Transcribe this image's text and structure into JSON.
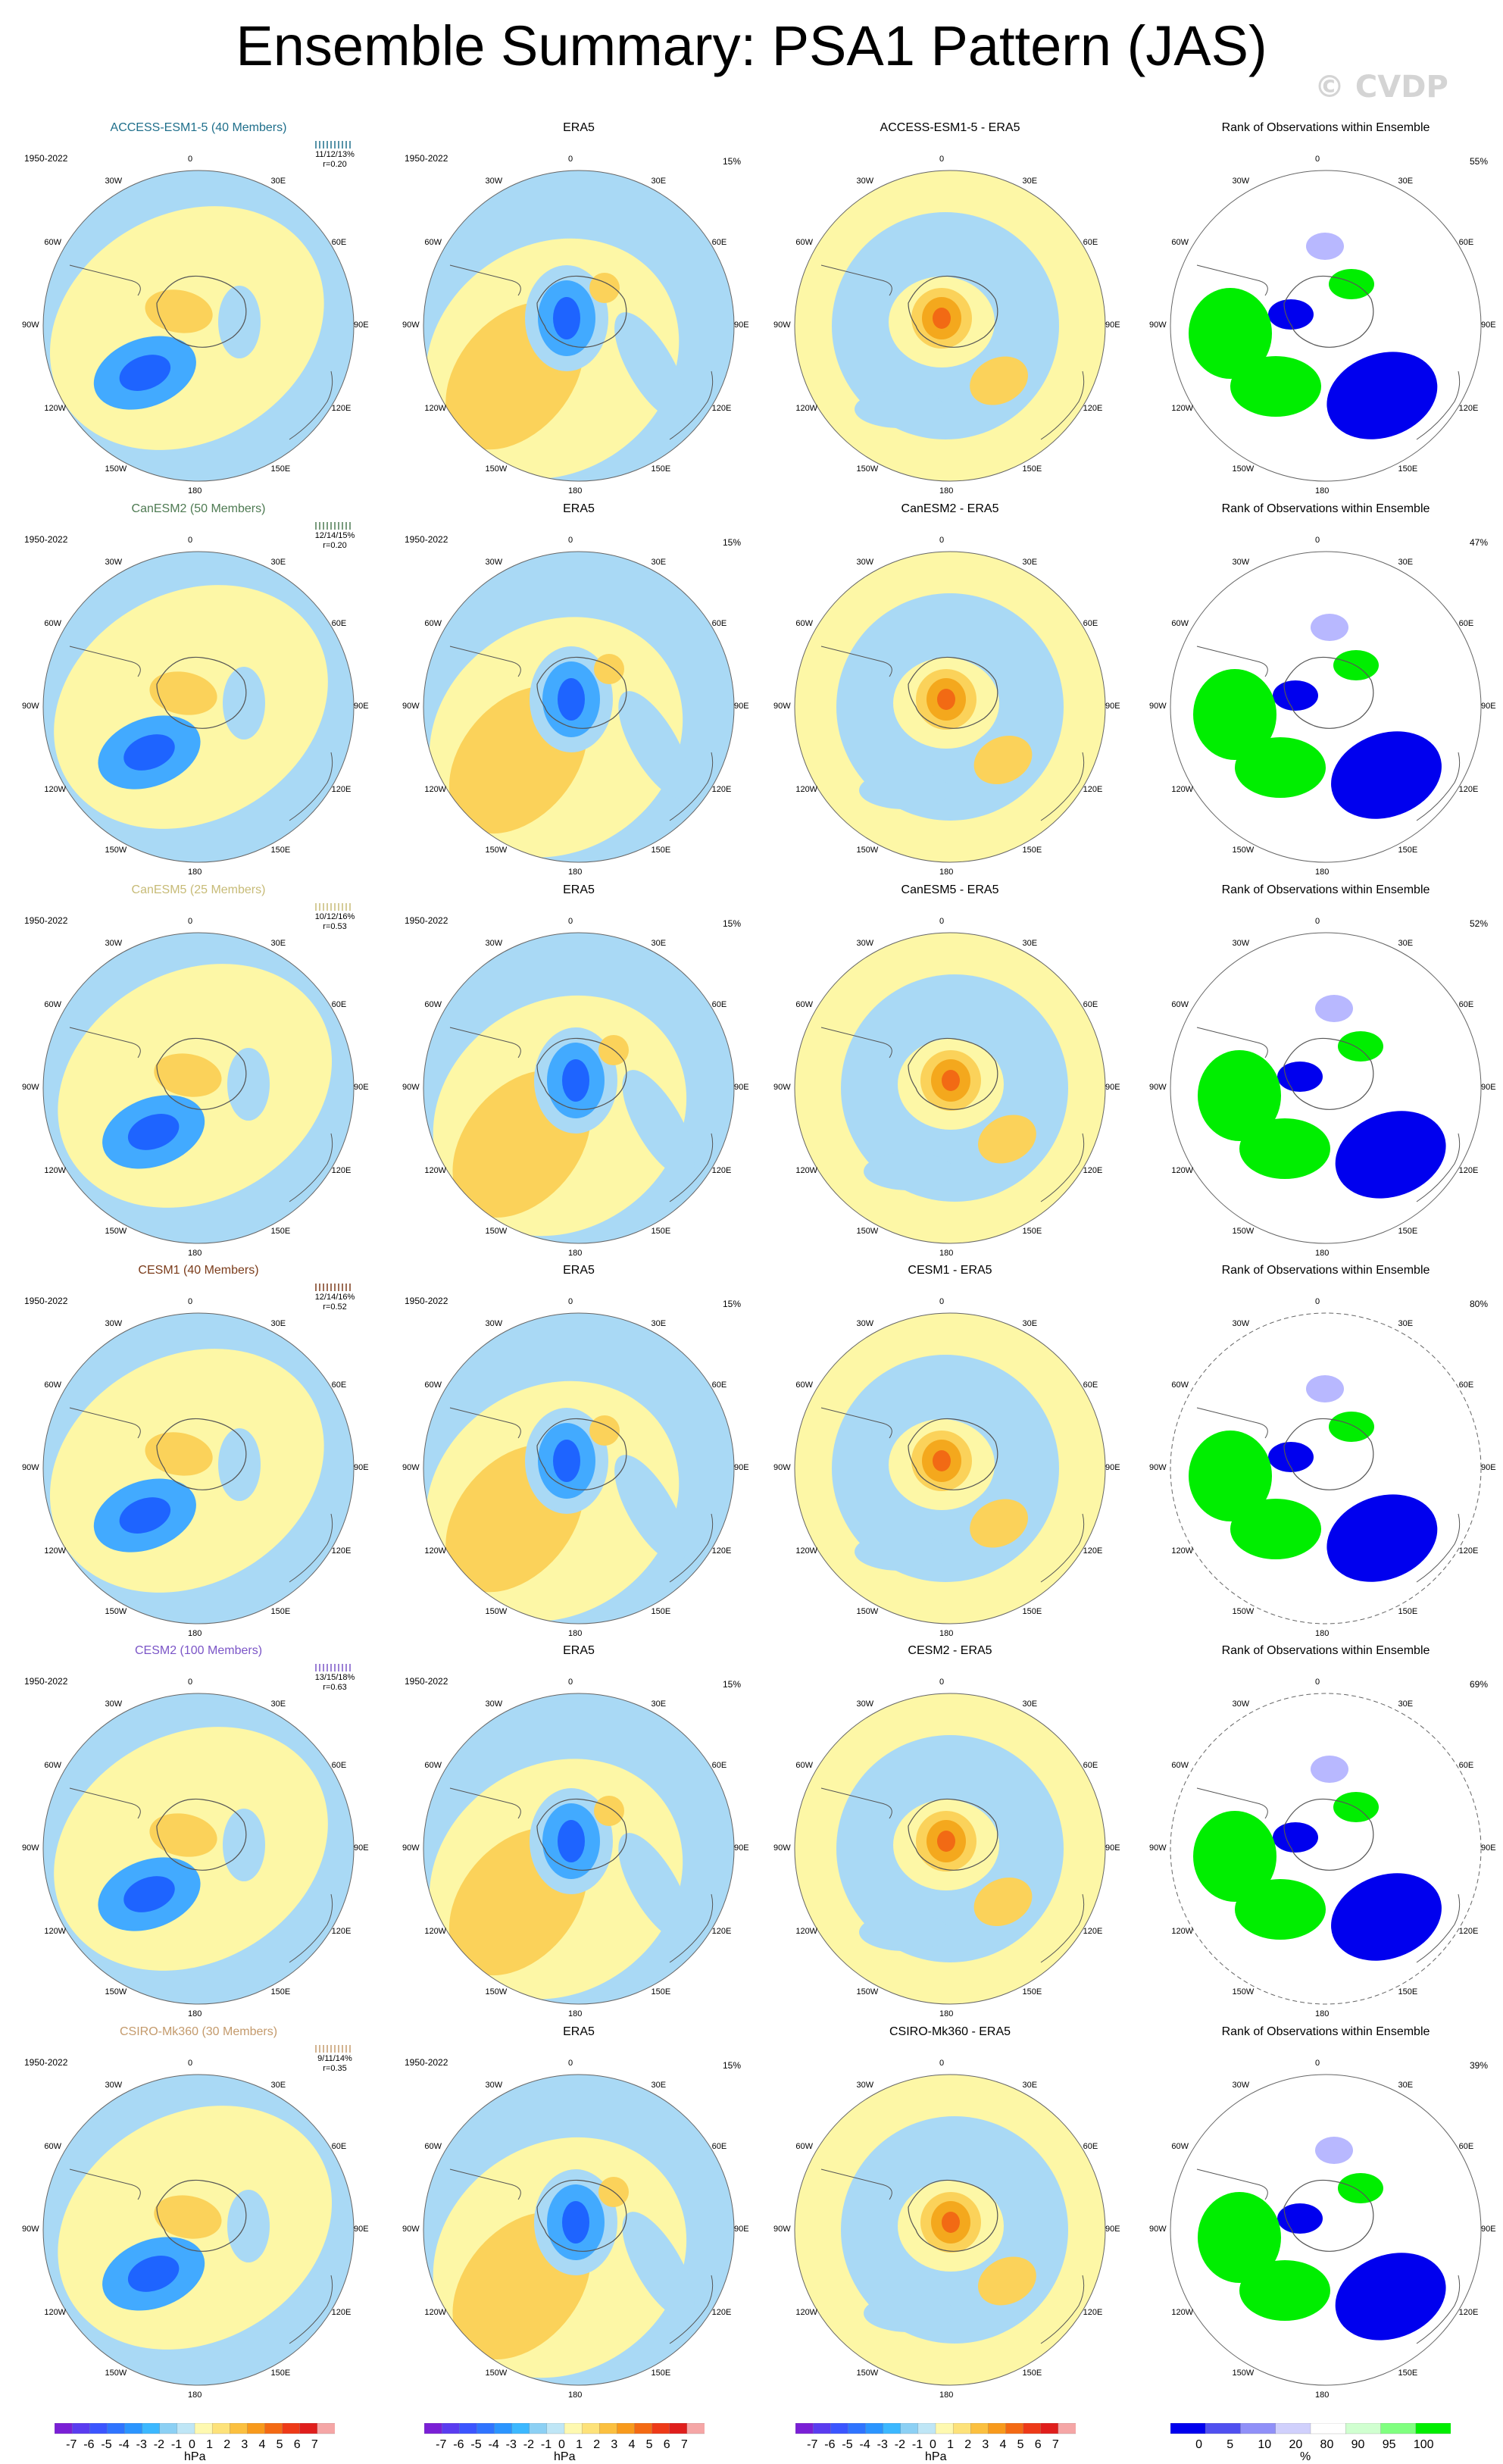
{
  "page": {
    "title": "Ensemble Summary: PSA1 Pattern (JAS)",
    "watermark": "© CVDP"
  },
  "colors": {
    "neg_strong": "#1e64ff",
    "neg_mid": "#42aaff",
    "neg_light": "#a9d9f5",
    "neutral": "#fdf7a6",
    "pos_light": "#fbd25a",
    "pos_mid": "#f4a81d",
    "pos_strong": "#f26a14",
    "pos_max": "#e8201d",
    "rank_blue": "#0000ee",
    "rank_green": "#00ee00",
    "rank_lightblue": "#b8b8ff",
    "rank_lightgreen": "#a8ffa8"
  },
  "longitude_labels": [
    "0",
    "30E",
    "60E",
    "90E",
    "120E",
    "150E",
    "180",
    "150W",
    "120W",
    "90W",
    "60W",
    "30W"
  ],
  "rows": [
    {
      "model": "ACCESS-ESM1-5 (40 Members)",
      "model_color": "#1f6f8b",
      "period": "1950-2022",
      "ranks": "11/12/13%",
      "corr": "r=0.20",
      "era_title": "ERA5",
      "era_period": "1950-2022",
      "era_pct": "15%",
      "diff_title": "ACCESS-ESM1-5 - ERA5",
      "rank_title": "Rank of Observations within Ensemble",
      "rank_pct": "55%"
    },
    {
      "model": "CanESM2 (50 Members)",
      "model_color": "#4e7a52",
      "period": "1950-2022",
      "ranks": "12/14/15%",
      "corr": "r=0.20",
      "era_title": "ERA5",
      "era_period": "1950-2022",
      "era_pct": "15%",
      "diff_title": "CanESM2 - ERA5",
      "rank_title": "Rank of Observations within Ensemble",
      "rank_pct": "47%"
    },
    {
      "model": "CanESM5 (25 Members)",
      "model_color": "#c7bb77",
      "period": "1950-2022",
      "ranks": "10/12/16%",
      "corr": "r=0.53",
      "era_title": "ERA5",
      "era_period": "1950-2022",
      "era_pct": "15%",
      "diff_title": "CanESM5 - ERA5",
      "rank_title": "Rank of Observations within Ensemble",
      "rank_pct": "52%"
    },
    {
      "model": "CESM1 (40 Members)",
      "model_color": "#7a3b1a",
      "period": "1950-2022",
      "ranks": "12/14/16%",
      "corr": "r=0.52",
      "era_title": "ERA5",
      "era_period": "1950-2022",
      "era_pct": "15%",
      "diff_title": "CESM1 - ERA5",
      "rank_title": "Rank of Observations within Ensemble",
      "rank_pct": "80%"
    },
    {
      "model": "CESM2 (100 Members)",
      "model_color": "#7b55c7",
      "period": "1950-2022",
      "ranks": "13/15/18%",
      "corr": "r=0.63",
      "era_title": "ERA5",
      "era_period": "1950-2022",
      "era_pct": "15%",
      "diff_title": "CESM2 - ERA5",
      "rank_title": "Rank of Observations within Ensemble",
      "rank_pct": "69%"
    },
    {
      "model": "CSIRO-Mk360 (30 Members)",
      "model_color": "#c49a6c",
      "period": "1950-2022",
      "ranks": "9/11/14%",
      "corr": "r=0.35",
      "era_title": "ERA5",
      "era_period": "1950-2022",
      "era_pct": "15%",
      "diff_title": "CSIRO-Mk360 - ERA5",
      "rank_title": "Rank of Observations within Ensemble",
      "rank_pct": "39%"
    }
  ],
  "colorbars": [
    {
      "name": "model",
      "unit": "hPa",
      "labels": [
        "-7",
        "-6",
        "-5",
        "-4",
        "-3",
        "-2",
        "-1",
        "0",
        "1",
        "2",
        "3",
        "4",
        "5",
        "6",
        "7"
      ],
      "colors": [
        "#7a1fd6",
        "#5a3cf0",
        "#3b55ff",
        "#2f74ff",
        "#2b95ff",
        "#3cb8ff",
        "#8cd0f4",
        "#bfe6f6",
        "#fef9b0",
        "#fde27a",
        "#fbc040",
        "#f89a1c",
        "#f46a14",
        "#ee3a18",
        "#e01e1c",
        "#f5a6a6"
      ]
    },
    {
      "name": "era5",
      "unit": "hPa",
      "labels": [
        "-7",
        "-6",
        "-5",
        "-4",
        "-3",
        "-2",
        "-1",
        "0",
        "1",
        "2",
        "3",
        "4",
        "5",
        "6",
        "7"
      ],
      "colors": [
        "#7a1fd6",
        "#5a3cf0",
        "#3b55ff",
        "#2f74ff",
        "#2b95ff",
        "#3cb8ff",
        "#8cd0f4",
        "#bfe6f6",
        "#fef9b0",
        "#fde27a",
        "#fbc040",
        "#f89a1c",
        "#f46a14",
        "#ee3a18",
        "#e01e1c",
        "#f5a6a6"
      ]
    },
    {
      "name": "diff",
      "unit": "hPa",
      "labels": [
        "-7",
        "-6",
        "-5",
        "-4",
        "-3",
        "-2",
        "-1",
        "0",
        "1",
        "2",
        "3",
        "4",
        "5",
        "6",
        "7"
      ],
      "colors": [
        "#7a1fd6",
        "#5a3cf0",
        "#3b55ff",
        "#2f74ff",
        "#2b95ff",
        "#3cb8ff",
        "#8cd0f4",
        "#bfe6f6",
        "#fef9b0",
        "#fde27a",
        "#fbc040",
        "#f89a1c",
        "#f46a14",
        "#ee3a18",
        "#e01e1c",
        "#f5a6a6"
      ]
    },
    {
      "name": "rank",
      "unit": "%",
      "labels": [
        "0",
        "5",
        "10",
        "20",
        "80",
        "90",
        "95",
        "100"
      ],
      "colors": [
        "#0000ee",
        "#5050f0",
        "#9090f8",
        "#d0d0fc",
        "#ffffff",
        "#d0ffd0",
        "#80ff80",
        "#00ee00"
      ]
    }
  ]
}
